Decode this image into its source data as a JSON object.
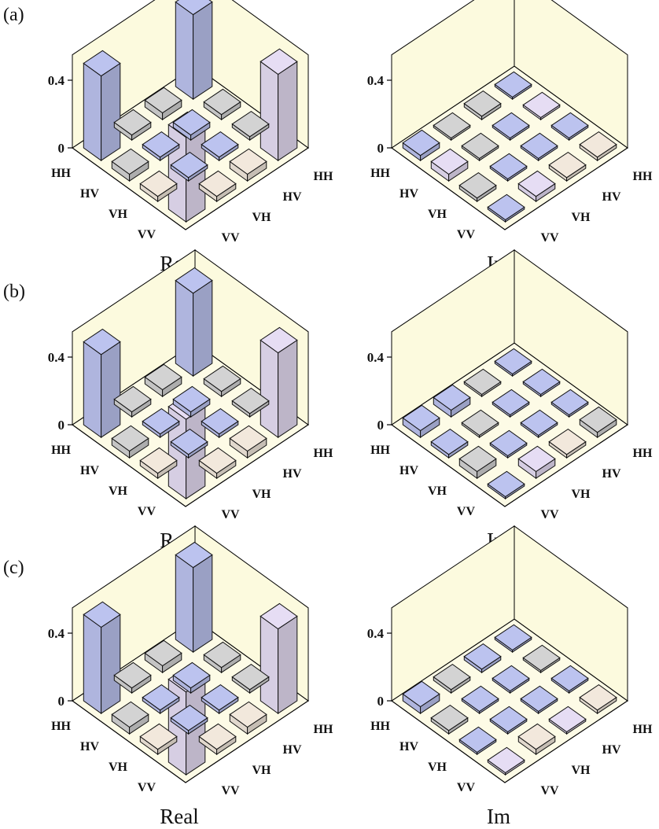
{
  "figure": {
    "panel_labels": [
      "(a)",
      "(b)",
      "(c)"
    ],
    "part_titles": [
      "Real",
      "Im"
    ]
  },
  "colors": {
    "floor": "#fdfbe6",
    "wall": "#fcfade",
    "axis": "#000000",
    "blue": "#bcc3ef",
    "lavender": "#e6ddf4",
    "gray": "#d3d3d3",
    "cream": "#f2e8dc"
  },
  "chart_data": [
    {
      "panel": "(a)",
      "part": "Real",
      "type": "bar3d",
      "row_labels": [
        "HH",
        "HV",
        "VH",
        "VV"
      ],
      "col_labels": [
        "HH",
        "HV",
        "VH",
        "VV"
      ],
      "zticks": [
        0.0,
        0.4
      ],
      "zlim": [
        0,
        0.55
      ],
      "values": [
        [
          0.5,
          -0.04,
          0.03,
          0.5
        ],
        [
          -0.03,
          0.03,
          -0.02,
          0.04
        ],
        [
          0.02,
          -0.02,
          0.02,
          -0.03
        ],
        [
          0.51,
          0.04,
          -0.03,
          0.5
        ]
      ],
      "colors": [
        [
          "blue",
          "gray",
          "gray",
          "blue"
        ],
        [
          "gray",
          "blue",
          "blue",
          "gray"
        ],
        [
          "gray",
          "blue",
          "blue",
          "cream"
        ],
        [
          "lavender",
          "cream",
          "cream",
          "lavender"
        ]
      ]
    },
    {
      "panel": "(a)",
      "part": "Im",
      "type": "bar3d",
      "row_labels": [
        "HH",
        "HV",
        "VH",
        "VV"
      ],
      "col_labels": [
        "HH",
        "HV",
        "VH",
        "VV"
      ],
      "zticks": [
        0.0,
        0.4
      ],
      "zlim": [
        0,
        0.55
      ],
      "values": [
        [
          0.0,
          0.02,
          0.01,
          0.03
        ],
        [
          0.01,
          -0.01,
          0.0,
          0.04
        ],
        [
          -0.01,
          0.01,
          -0.01,
          0.02
        ],
        [
          -0.02,
          0.02,
          -0.03,
          0.0
        ]
      ],
      "colors": [
        [
          "blue",
          "gray",
          "gray",
          "blue"
        ],
        [
          "lavender",
          "blue",
          "gray",
          "lavender"
        ],
        [
          "blue",
          "blue",
          "blue",
          "gray"
        ],
        [
          "cream",
          "cream",
          "lavender",
          "blue"
        ]
      ]
    },
    {
      "panel": "(b)",
      "part": "Real",
      "type": "bar3d",
      "row_labels": [
        "HH",
        "HV",
        "VH",
        "VV"
      ],
      "col_labels": [
        "HH",
        "HV",
        "VH",
        "VV"
      ],
      "zticks": [
        0.0,
        0.4
      ],
      "zlim": [
        0,
        0.55
      ],
      "values": [
        [
          0.49,
          -0.04,
          0.03,
          0.49
        ],
        [
          -0.03,
          0.03,
          -0.02,
          0.04
        ],
        [
          0.02,
          -0.02,
          0.02,
          -0.03
        ],
        [
          0.5,
          0.04,
          -0.03,
          0.47
        ]
      ],
      "colors": [
        [
          "blue",
          "gray",
          "gray",
          "blue"
        ],
        [
          "gray",
          "blue",
          "blue",
          "gray"
        ],
        [
          "gray",
          "blue",
          "blue",
          "cream"
        ],
        [
          "lavender",
          "cream",
          "cream",
          "lavender"
        ]
      ]
    },
    {
      "panel": "(b)",
      "part": "Im",
      "type": "bar3d",
      "row_labels": [
        "HH",
        "HV",
        "VH",
        "VV"
      ],
      "col_labels": [
        "HH",
        "HV",
        "VH",
        "VV"
      ],
      "zticks": [
        0.0,
        0.4
      ],
      "zlim": [
        0,
        0.55
      ],
      "values": [
        [
          0.0,
          0.01,
          0.04,
          0.04
        ],
        [
          0.01,
          0.01,
          0.0,
          0.02
        ],
        [
          0.0,
          -0.01,
          0.01,
          0.04
        ],
        [
          -0.03,
          0.02,
          -0.04,
          0.0
        ]
      ],
      "colors": [
        [
          "blue",
          "gray",
          "blue",
          "blue"
        ],
        [
          "blue",
          "blue",
          "gray",
          "blue"
        ],
        [
          "blue",
          "blue",
          "blue",
          "gray"
        ],
        [
          "gray",
          "cream",
          "lavender",
          "blue"
        ]
      ]
    },
    {
      "panel": "(c)",
      "part": "Real",
      "type": "bar3d",
      "row_labels": [
        "HH",
        "HV",
        "VH",
        "VV"
      ],
      "col_labels": [
        "HH",
        "HV",
        "VH",
        "VV"
      ],
      "zticks": [
        0.0,
        0.4
      ],
      "zlim": [
        0,
        0.55
      ],
      "values": [
        [
          0.5,
          -0.04,
          0.03,
          0.51
        ],
        [
          -0.03,
          0.03,
          -0.02,
          0.04
        ],
        [
          0.02,
          -0.02,
          0.02,
          -0.03
        ],
        [
          0.5,
          0.04,
          -0.03,
          0.49
        ]
      ],
      "colors": [
        [
          "blue",
          "gray",
          "gray",
          "blue"
        ],
        [
          "gray",
          "blue",
          "blue",
          "gray"
        ],
        [
          "gray",
          "blue",
          "blue",
          "cream"
        ],
        [
          "lavender",
          "cream",
          "cream",
          "lavender"
        ]
      ]
    },
    {
      "panel": "(c)",
      "part": "Im",
      "type": "bar3d",
      "row_labels": [
        "HH",
        "HV",
        "VH",
        "VV"
      ],
      "col_labels": [
        "HH",
        "HV",
        "VH",
        "VV"
      ],
      "zticks": [
        0.0,
        0.4
      ],
      "zlim": [
        0,
        0.55
      ],
      "values": [
        [
          0.0,
          0.02,
          0.02,
          0.04
        ],
        [
          0.01,
          0.01,
          0.0,
          0.02
        ],
        [
          -0.01,
          0.0,
          0.0,
          0.01
        ],
        [
          -0.02,
          0.01,
          -0.03,
          0.0
        ]
      ],
      "colors": [
        [
          "blue",
          "blue",
          "gray",
          "blue"
        ],
        [
          "gray",
          "blue",
          "blue",
          "gray"
        ],
        [
          "blue",
          "blue",
          "blue",
          "blue"
        ],
        [
          "cream",
          "lavender",
          "cream",
          "lavender"
        ]
      ]
    }
  ]
}
